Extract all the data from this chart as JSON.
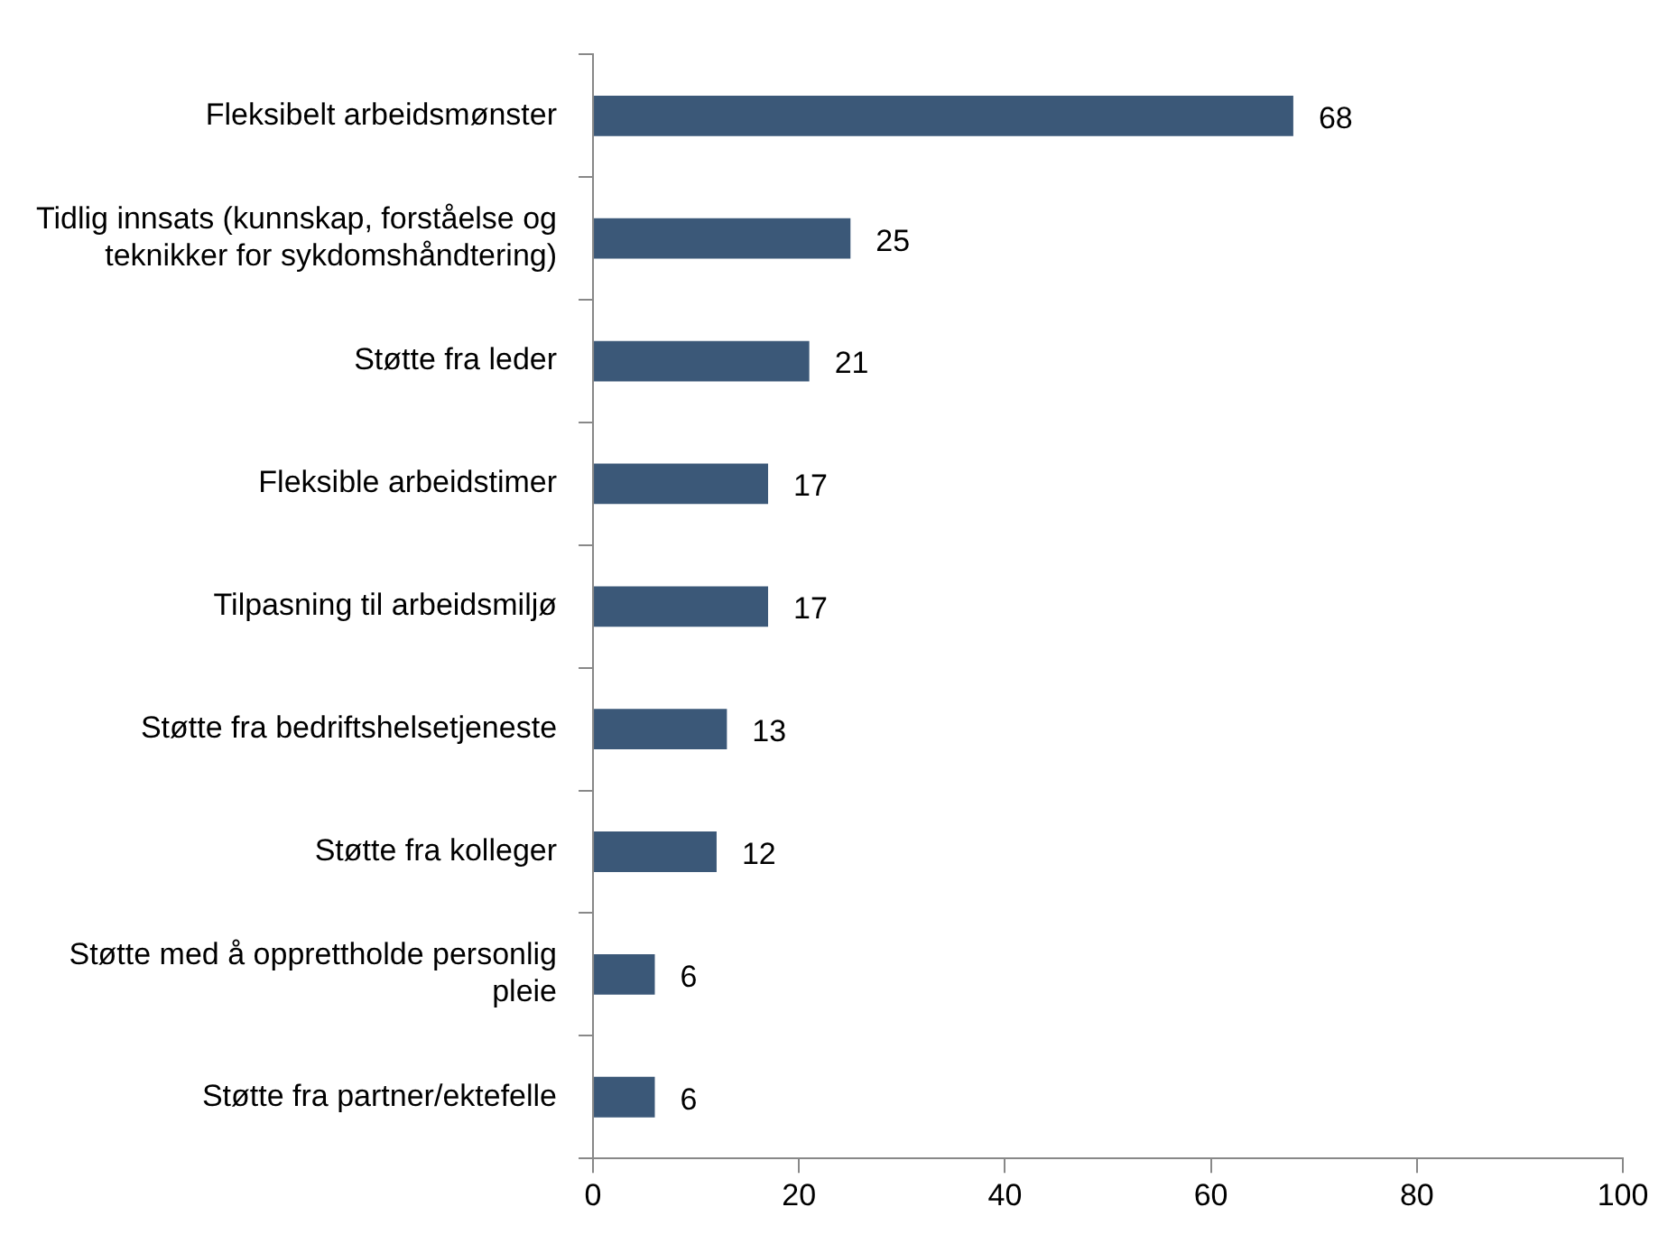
{
  "chart_data": {
    "type": "bar",
    "orientation": "horizontal",
    "categories": [
      "Fleksibelt arbeidsmønster",
      "Tidlig innsats (kunnskap, forståelse og teknikker for sykdomshåndtering)",
      "Støtte fra leder",
      "Fleksible arbeidstimer",
      "Tilpasning til arbeidsmiljø",
      "Støtte fra bedriftshelsetjeneste",
      "Støtte fra kolleger",
      "Støtte med å opprettholde personlig pleie",
      "Støtte fra partner/ektefelle"
    ],
    "values": [
      68,
      25,
      21,
      17,
      17,
      13,
      12,
      6,
      6
    ],
    "color": "#3b5878",
    "xlim": [
      0,
      100
    ],
    "xticks": [
      0,
      20,
      40,
      60,
      80,
      100
    ],
    "grid": false,
    "legend": false,
    "data_labels": true
  }
}
